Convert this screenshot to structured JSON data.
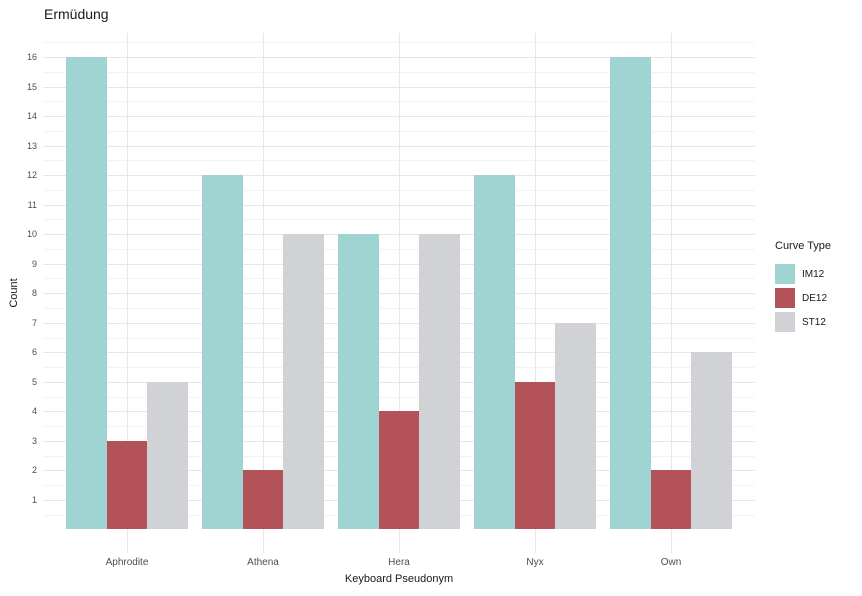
{
  "chart_data": {
    "type": "bar",
    "title": "Ermüdung",
    "xlabel": "Keyboard Pseudonym",
    "ylabel": "Count",
    "categories": [
      "Aphrodite",
      "Athena",
      "Hera",
      "Nyx",
      "Own"
    ],
    "series": [
      {
        "name": "IM12",
        "color": "#A0D4D2",
        "values": [
          16,
          12,
          10,
          12,
          16
        ]
      },
      {
        "name": "DE12",
        "color": "#B4525A",
        "values": [
          3,
          2,
          4,
          5,
          2
        ]
      },
      {
        "name": "ST12",
        "color": "#D1D2D6",
        "values": [
          5,
          10,
          10,
          7,
          6
        ]
      }
    ],
    "y_ticks": [
      "1",
      "2",
      "3",
      "4",
      "5",
      "6",
      "7",
      "8",
      "9",
      "10",
      "11",
      "12",
      "13",
      "14",
      "15",
      "16"
    ],
    "ylim": [
      -0.8,
      16.8
    ],
    "grid": true,
    "legend": {
      "title": "Curve Type",
      "position": "right"
    },
    "colors": {
      "background": "#FFFFFF",
      "major_grid": "#E7E7E7",
      "minor_grid": "#F3F3F3",
      "axis_text": "#4D4D4D",
      "title_text": "#1A1A1A"
    }
  }
}
